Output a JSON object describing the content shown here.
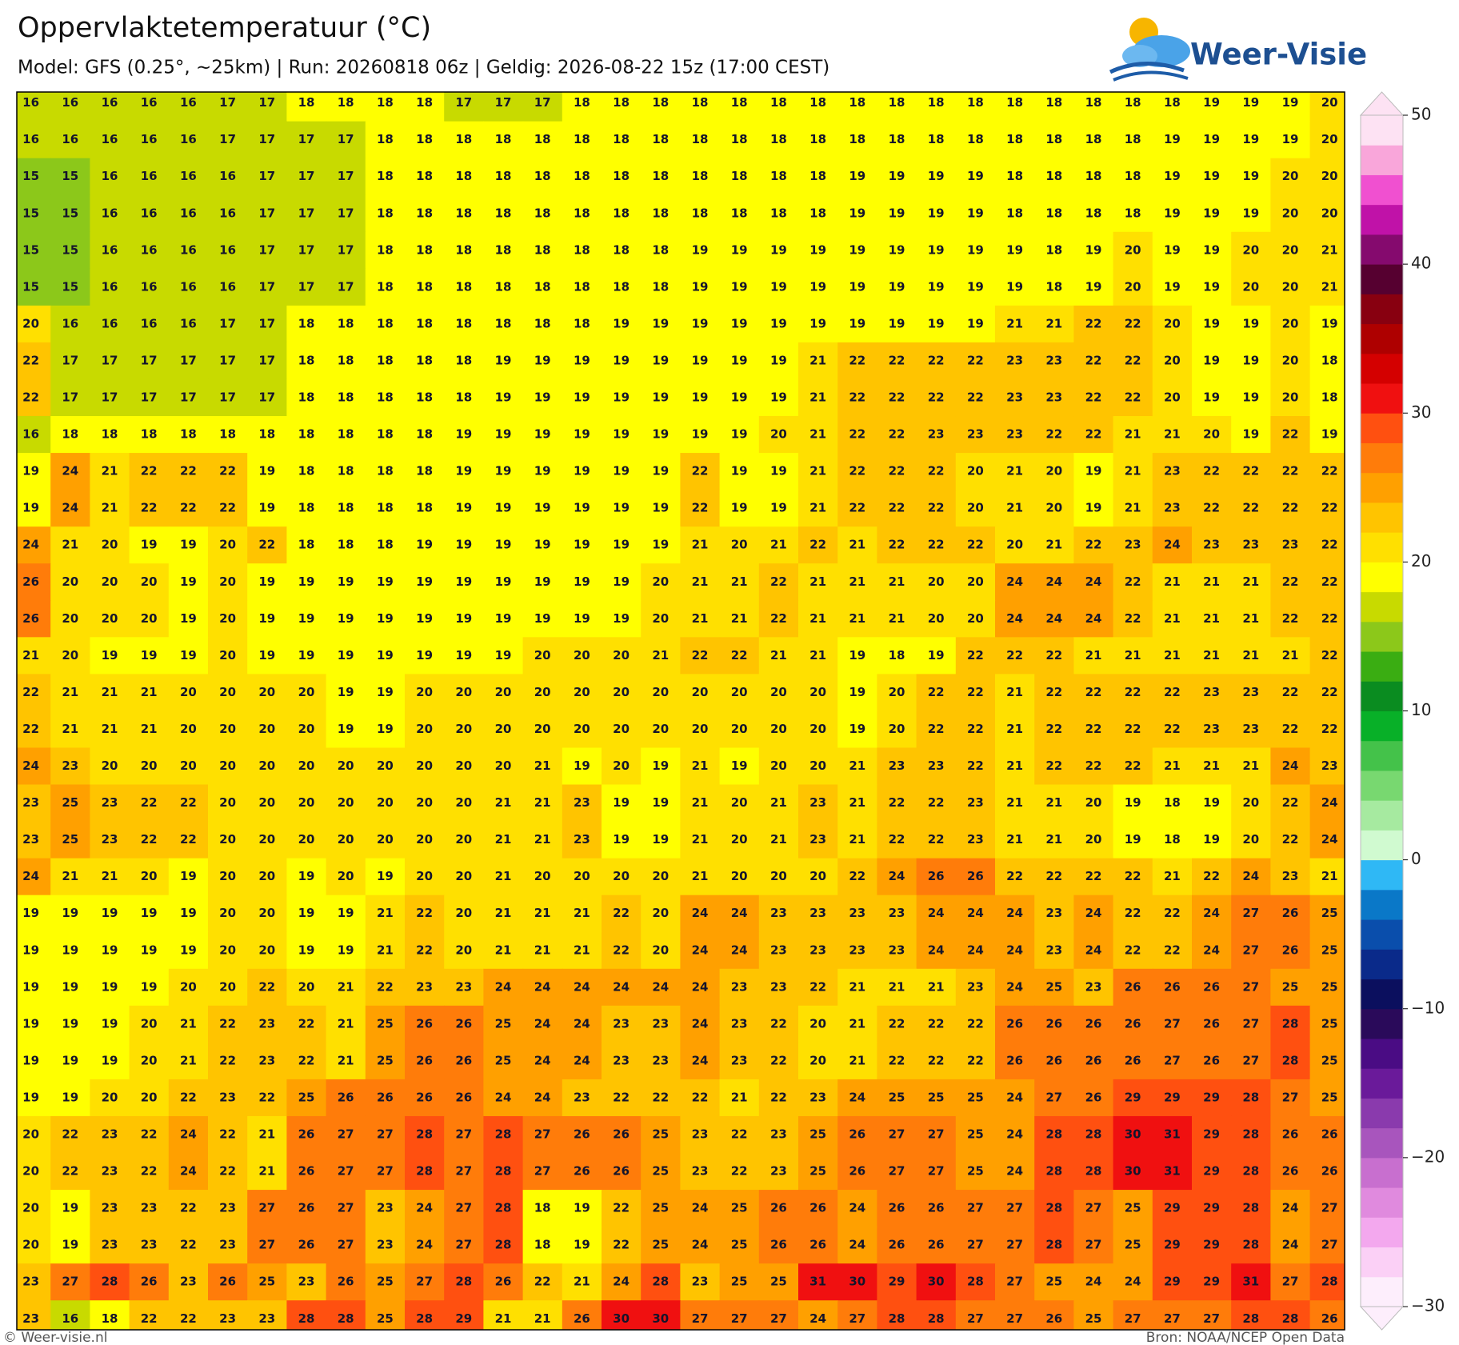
{
  "header": {
    "title": "Oppervlaktetemperatuur (°C)",
    "subtitle": "Model: GFS (0.25°, ~25km)  |  Run: 20260818 06z  |  Geldig: 2026-08-22 15z (17:00 CEST)",
    "logo": "Weer-Visie"
  },
  "map": {
    "type": "grid",
    "values": [
      [
        16,
        16,
        16,
        16,
        16,
        17,
        17,
        18,
        18,
        18,
        18,
        17,
        17,
        17,
        18,
        18,
        18,
        18,
        18,
        18,
        18,
        18,
        18,
        18,
        18,
        18,
        18,
        18,
        18,
        18,
        19,
        19,
        19,
        20
      ],
      [
        16,
        16,
        16,
        16,
        16,
        17,
        17,
        17,
        17,
        18,
        18,
        18,
        18,
        18,
        18,
        18,
        18,
        18,
        18,
        18,
        18,
        18,
        18,
        18,
        18,
        18,
        18,
        18,
        18,
        19,
        19,
        19,
        19,
        20
      ],
      [
        15,
        15,
        16,
        16,
        16,
        16,
        17,
        17,
        17,
        18,
        18,
        18,
        18,
        18,
        18,
        18,
        18,
        18,
        18,
        18,
        18,
        19,
        19,
        19,
        19,
        18,
        18,
        18,
        18,
        19,
        19,
        19,
        20,
        20
      ],
      [
        15,
        15,
        16,
        16,
        16,
        16,
        17,
        17,
        17,
        18,
        18,
        18,
        18,
        18,
        18,
        18,
        18,
        18,
        18,
        18,
        18,
        19,
        19,
        19,
        19,
        18,
        18,
        18,
        18,
        19,
        19,
        19,
        20,
        20
      ],
      [
        15,
        15,
        16,
        16,
        16,
        16,
        17,
        17,
        17,
        18,
        18,
        18,
        18,
        18,
        18,
        18,
        18,
        19,
        19,
        19,
        19,
        19,
        19,
        19,
        19,
        19,
        18,
        19,
        20,
        19,
        19,
        20,
        20,
        21
      ],
      [
        15,
        15,
        16,
        16,
        16,
        16,
        17,
        17,
        17,
        18,
        18,
        18,
        18,
        18,
        18,
        18,
        18,
        19,
        19,
        19,
        19,
        19,
        19,
        19,
        19,
        19,
        18,
        19,
        20,
        19,
        19,
        20,
        20,
        21
      ],
      [
        20,
        16,
        16,
        16,
        16,
        17,
        17,
        18,
        18,
        18,
        18,
        18,
        18,
        18,
        18,
        19,
        19,
        19,
        19,
        19,
        19,
        19,
        19,
        19,
        19,
        21,
        21,
        22,
        22,
        20,
        19,
        19,
        20,
        19
      ],
      [
        22,
        17,
        17,
        17,
        17,
        17,
        17,
        18,
        18,
        18,
        18,
        18,
        19,
        19,
        19,
        19,
        19,
        19,
        19,
        19,
        21,
        22,
        22,
        22,
        22,
        23,
        23,
        22,
        22,
        20,
        19,
        19,
        20,
        18
      ],
      [
        22,
        17,
        17,
        17,
        17,
        17,
        17,
        18,
        18,
        18,
        18,
        18,
        19,
        19,
        19,
        19,
        19,
        19,
        19,
        19,
        21,
        22,
        22,
        22,
        22,
        23,
        23,
        22,
        22,
        20,
        19,
        19,
        20,
        18
      ],
      [
        16,
        18,
        18,
        18,
        18,
        18,
        18,
        18,
        18,
        18,
        18,
        19,
        19,
        19,
        19,
        19,
        19,
        19,
        19,
        20,
        21,
        22,
        22,
        23,
        23,
        23,
        22,
        22,
        21,
        21,
        20,
        19,
        22,
        19
      ],
      [
        19,
        24,
        21,
        22,
        22,
        22,
        19,
        18,
        18,
        18,
        18,
        19,
        19,
        19,
        19,
        19,
        19,
        22,
        19,
        19,
        21,
        22,
        22,
        22,
        20,
        21,
        20,
        19,
        21,
        23,
        22,
        22,
        22,
        22
      ],
      [
        19,
        24,
        21,
        22,
        22,
        22,
        19,
        18,
        18,
        18,
        18,
        19,
        19,
        19,
        19,
        19,
        19,
        22,
        19,
        19,
        21,
        22,
        22,
        22,
        20,
        21,
        20,
        19,
        21,
        23,
        22,
        22,
        22,
        22
      ],
      [
        24,
        21,
        20,
        19,
        19,
        20,
        22,
        18,
        18,
        18,
        19,
        19,
        19,
        19,
        19,
        19,
        19,
        21,
        20,
        21,
        22,
        21,
        22,
        22,
        22,
        20,
        21,
        22,
        23,
        24,
        23,
        23,
        23,
        22
      ],
      [
        26,
        20,
        20,
        20,
        19,
        20,
        19,
        19,
        19,
        19,
        19,
        19,
        19,
        19,
        19,
        19,
        20,
        21,
        21,
        22,
        21,
        21,
        21,
        20,
        20,
        24,
        24,
        24,
        22,
        21,
        21,
        21,
        22,
        22
      ],
      [
        26,
        20,
        20,
        20,
        19,
        20,
        19,
        19,
        19,
        19,
        19,
        19,
        19,
        19,
        19,
        19,
        20,
        21,
        21,
        22,
        21,
        21,
        21,
        20,
        20,
        24,
        24,
        24,
        22,
        21,
        21,
        21,
        22,
        22
      ],
      [
        21,
        20,
        19,
        19,
        19,
        20,
        19,
        19,
        19,
        19,
        19,
        19,
        19,
        20,
        20,
        20,
        21,
        22,
        22,
        21,
        21,
        19,
        18,
        19,
        22,
        22,
        22,
        21,
        21,
        21,
        21,
        21,
        21,
        22
      ],
      [
        22,
        21,
        21,
        21,
        20,
        20,
        20,
        20,
        19,
        19,
        20,
        20,
        20,
        20,
        20,
        20,
        20,
        20,
        20,
        20,
        20,
        19,
        20,
        22,
        22,
        21,
        22,
        22,
        22,
        22,
        23,
        23,
        22,
        22
      ],
      [
        22,
        21,
        21,
        21,
        20,
        20,
        20,
        20,
        19,
        19,
        20,
        20,
        20,
        20,
        20,
        20,
        20,
        20,
        20,
        20,
        20,
        19,
        20,
        22,
        22,
        21,
        22,
        22,
        22,
        22,
        23,
        23,
        22,
        22
      ],
      [
        24,
        23,
        20,
        20,
        20,
        20,
        20,
        20,
        20,
        20,
        20,
        20,
        20,
        21,
        19,
        20,
        19,
        21,
        19,
        20,
        20,
        21,
        23,
        23,
        22,
        21,
        22,
        22,
        22,
        21,
        21,
        21,
        24,
        23
      ],
      [
        23,
        25,
        23,
        22,
        22,
        20,
        20,
        20,
        20,
        20,
        20,
        20,
        21,
        21,
        23,
        19,
        19,
        21,
        20,
        21,
        23,
        21,
        22,
        22,
        23,
        21,
        21,
        20,
        19,
        18,
        19,
        20,
        22,
        24
      ],
      [
        23,
        25,
        23,
        22,
        22,
        20,
        20,
        20,
        20,
        20,
        20,
        20,
        21,
        21,
        23,
        19,
        19,
        21,
        20,
        21,
        23,
        21,
        22,
        22,
        23,
        21,
        21,
        20,
        19,
        18,
        19,
        20,
        22,
        24
      ],
      [
        24,
        21,
        21,
        20,
        19,
        20,
        20,
        19,
        20,
        19,
        20,
        20,
        21,
        20,
        20,
        20,
        20,
        21,
        20,
        20,
        20,
        22,
        24,
        26,
        26,
        22,
        22,
        22,
        22,
        21,
        22,
        24,
        23,
        21
      ],
      [
        19,
        19,
        19,
        19,
        19,
        20,
        20,
        19,
        19,
        21,
        22,
        20,
        21,
        21,
        21,
        22,
        20,
        24,
        24,
        23,
        23,
        23,
        23,
        24,
        24,
        24,
        23,
        24,
        22,
        22,
        24,
        27,
        26,
        25
      ],
      [
        19,
        19,
        19,
        19,
        19,
        20,
        20,
        19,
        19,
        21,
        22,
        20,
        21,
        21,
        21,
        22,
        20,
        24,
        24,
        23,
        23,
        23,
        23,
        24,
        24,
        24,
        23,
        24,
        22,
        22,
        24,
        27,
        26,
        25
      ],
      [
        19,
        19,
        19,
        19,
        20,
        20,
        22,
        20,
        21,
        22,
        23,
        23,
        24,
        24,
        24,
        24,
        24,
        24,
        23,
        23,
        22,
        21,
        21,
        21,
        23,
        24,
        25,
        23,
        26,
        26,
        26,
        27,
        25,
        25
      ],
      [
        19,
        19,
        19,
        20,
        21,
        22,
        23,
        22,
        21,
        25,
        26,
        26,
        25,
        24,
        24,
        23,
        23,
        24,
        23,
        22,
        20,
        21,
        22,
        22,
        22,
        26,
        26,
        26,
        26,
        27,
        26,
        27,
        28,
        25
      ],
      [
        19,
        19,
        19,
        20,
        21,
        22,
        23,
        22,
        21,
        25,
        26,
        26,
        25,
        24,
        24,
        23,
        23,
        24,
        23,
        22,
        20,
        21,
        22,
        22,
        22,
        26,
        26,
        26,
        26,
        27,
        26,
        27,
        28,
        25
      ],
      [
        19,
        19,
        20,
        20,
        22,
        23,
        22,
        25,
        26,
        26,
        26,
        26,
        24,
        24,
        23,
        22,
        22,
        22,
        21,
        22,
        23,
        24,
        25,
        25,
        25,
        24,
        27,
        26,
        29,
        29,
        29,
        28,
        27,
        25
      ],
      [
        20,
        22,
        23,
        22,
        24,
        22,
        21,
        26,
        27,
        27,
        28,
        27,
        28,
        27,
        26,
        26,
        25,
        23,
        22,
        23,
        25,
        26,
        27,
        27,
        25,
        24,
        28,
        28,
        30,
        31,
        29,
        28,
        26,
        26
      ],
      [
        20,
        22,
        23,
        22,
        24,
        22,
        21,
        26,
        27,
        27,
        28,
        27,
        28,
        27,
        26,
        26,
        25,
        23,
        22,
        23,
        25,
        26,
        27,
        27,
        25,
        24,
        28,
        28,
        30,
        31,
        29,
        28,
        26,
        26
      ],
      [
        20,
        19,
        23,
        23,
        22,
        23,
        27,
        26,
        27,
        23,
        24,
        27,
        28,
        18,
        19,
        22,
        25,
        24,
        25,
        26,
        26,
        24,
        26,
        26,
        27,
        27,
        28,
        27,
        25,
        29,
        29,
        28,
        24,
        27
      ],
      [
        20,
        19,
        23,
        23,
        22,
        23,
        27,
        26,
        27,
        23,
        24,
        27,
        28,
        18,
        19,
        22,
        25,
        24,
        25,
        26,
        26,
        24,
        26,
        26,
        27,
        27,
        28,
        27,
        25,
        29,
        29,
        28,
        24,
        27
      ],
      [
        23,
        27,
        28,
        26,
        23,
        26,
        25,
        23,
        26,
        25,
        27,
        28,
        26,
        22,
        21,
        24,
        28,
        23,
        25,
        25,
        31,
        30,
        29,
        30,
        28,
        27,
        25,
        24,
        24,
        29,
        29,
        31,
        27,
        28
      ],
      [
        23,
        16,
        18,
        22,
        22,
        23,
        23,
        28,
        28,
        25,
        28,
        29,
        21,
        21,
        26,
        30,
        30,
        27,
        27,
        27,
        24,
        27,
        28,
        28,
        27,
        27,
        26,
        25,
        27,
        27,
        27,
        28,
        28,
        26
      ]
    ],
    "colorbar": {
      "lim": [
        -30,
        50
      ],
      "ticks": [
        {
          "value": -30,
          "label": "−30"
        },
        {
          "value": -20,
          "label": "−20"
        },
        {
          "value": -10,
          "label": "−10"
        },
        0,
        10,
        20,
        30,
        40,
        50
      ],
      "colors": [
        "#fdeefc",
        "#fbd0f6",
        "#f3a8ee",
        "#e08ade",
        "#c86fcf",
        "#a855bd",
        "#8a3aad",
        "#6a1a9a",
        "#4a0c84",
        "#2a0a5a",
        "#0b0f5e",
        "#0a2a8a",
        "#0a4eac",
        "#0a78c8",
        "#2fb8f5",
        "#d0fad0",
        "#a6eaa0",
        "#78d870",
        "#44c24a",
        "#08b028",
        "#0a8c20",
        "#3aad12",
        "#8cc81a",
        "#c8da00",
        "#ffff00",
        "#ffe000",
        "#ffc400",
        "#ffa000",
        "#ff7c0a",
        "#ff5010",
        "#f01010",
        "#d40000",
        "#ae0000",
        "#880010",
        "#560030",
        "#850a6e",
        "#c012a8",
        "#f050d0",
        "#f9a6da",
        "#fde2f3"
      ]
    }
  },
  "footer": {
    "left": "© Weer-visie.nl",
    "right": "Bron: NOAA/NCEP Open Data"
  }
}
